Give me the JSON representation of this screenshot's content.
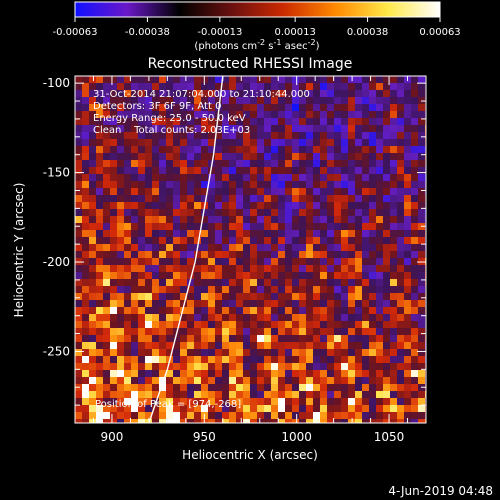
{
  "colorbar": {
    "tick_labels": [
      "-0.00063",
      "-0.00038",
      "-0.00013",
      "0.00013",
      "0.00038",
      "0.00063"
    ],
    "tick_values": [
      -0.00063,
      -0.00038,
      -0.00013,
      0.00013,
      0.00038,
      0.00063
    ],
    "range": [
      -0.00063,
      0.00063
    ],
    "stops": [
      "#1010ff",
      "#6a18c8",
      "#000000",
      "#6a1010",
      "#cc2a00",
      "#ff8a00",
      "#ffe94a",
      "#ffffff"
    ]
  },
  "chart_data": {
    "type": "heatmap",
    "title": "Reconstructed RHESSI Image",
    "xlabel": "Heliocentric X (arcsec)",
    "ylabel": "Heliocentric Y (arcsec)",
    "xlim": [
      880,
      1070
    ],
    "ylim": [
      -290,
      -96
    ],
    "x_ticks": [
      900,
      950,
      1000,
      1050
    ],
    "y_ticks": [
      -100,
      -150,
      -200,
      -250
    ],
    "annotations": [
      "31-Oct-2014 21:07:04.000 to 21:10:44.000",
      "Detectors: 3F 6F 9F, Att 0",
      "Energy Range: 25.0 - 50.0 keV",
      "Clean    Total counts: 2.03E+03",
      "Position of Peak = [974,-268]"
    ],
    "peak": [
      974,
      -268
    ],
    "limb_curve": [
      [
        960,
        -96
      ],
      [
        955,
        -140
      ],
      [
        945,
        -200
      ],
      [
        930,
        -260
      ],
      [
        920,
        -290
      ]
    ]
  },
  "footer": {
    "date": "4-Jun-2019 04:48"
  }
}
